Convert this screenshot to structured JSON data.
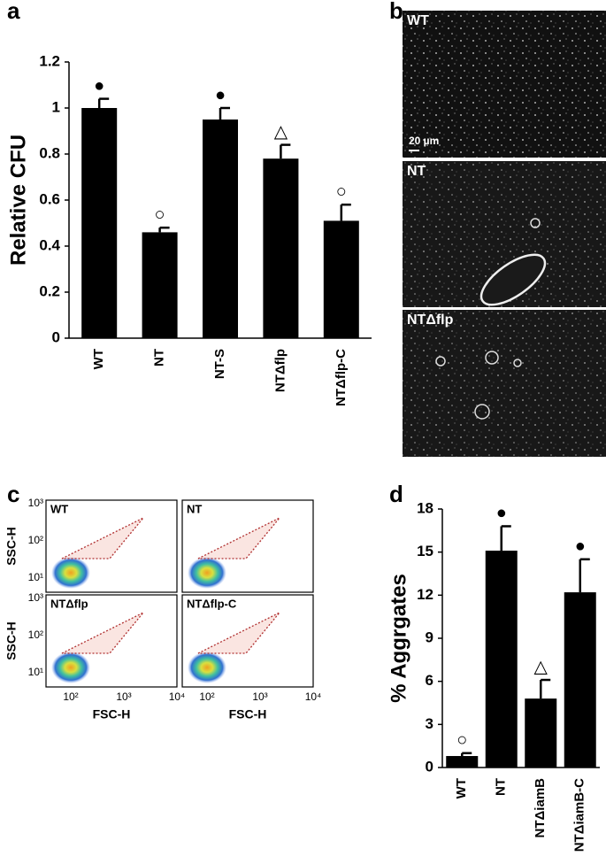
{
  "panel_labels": [
    "a",
    "b",
    "c",
    "d"
  ],
  "chart_data": [
    {
      "type": "bar",
      "y_label": "Relative CFU",
      "categories": [
        "WT",
        "NT",
        "NT-S",
        "NTΔflp",
        "NTΔflp-C"
      ],
      "values": [
        1.0,
        0.46,
        0.95,
        0.78,
        0.51
      ],
      "errors": [
        0.04,
        0.02,
        0.05,
        0.06,
        0.07
      ],
      "annotations": [
        "●",
        "○",
        "●",
        "△",
        "○"
      ],
      "color": "#000000",
      "ylim": [
        0,
        1.2
      ],
      "yticks": [
        0,
        0.2,
        0.4,
        0.6,
        0.8,
        1,
        1.2
      ]
    },
    {
      "type": "bar",
      "y_label": "% Aggrgates",
      "categories": [
        "WT",
        "NT",
        "NTΔiamB",
        "NTΔiamB-C"
      ],
      "values": [
        0.8,
        15.1,
        4.8,
        12.2
      ],
      "errors": [
        0.2,
        1.7,
        1.3,
        2.3
      ],
      "annotations": [
        "○",
        "●",
        "△",
        "●"
      ],
      "color": "#000000",
      "ylim": [
        0,
        18
      ],
      "yticks": [
        0,
        3,
        6,
        9,
        12,
        15,
        18
      ]
    }
  ],
  "micrographs": {
    "panels": [
      "WT",
      "NT",
      "NTΔflp"
    ],
    "scale_bar": "20 µm"
  },
  "flow_cytometry": {
    "plots": [
      "WT",
      "NT",
      "NTΔflp",
      "NTΔflp-C"
    ],
    "y_label": "SSC-H",
    "x_label": "FSC-H",
    "yticks": [
      "10³",
      "10²",
      "10¹"
    ],
    "xticks": [
      "10²",
      "10³",
      "10⁴"
    ]
  }
}
